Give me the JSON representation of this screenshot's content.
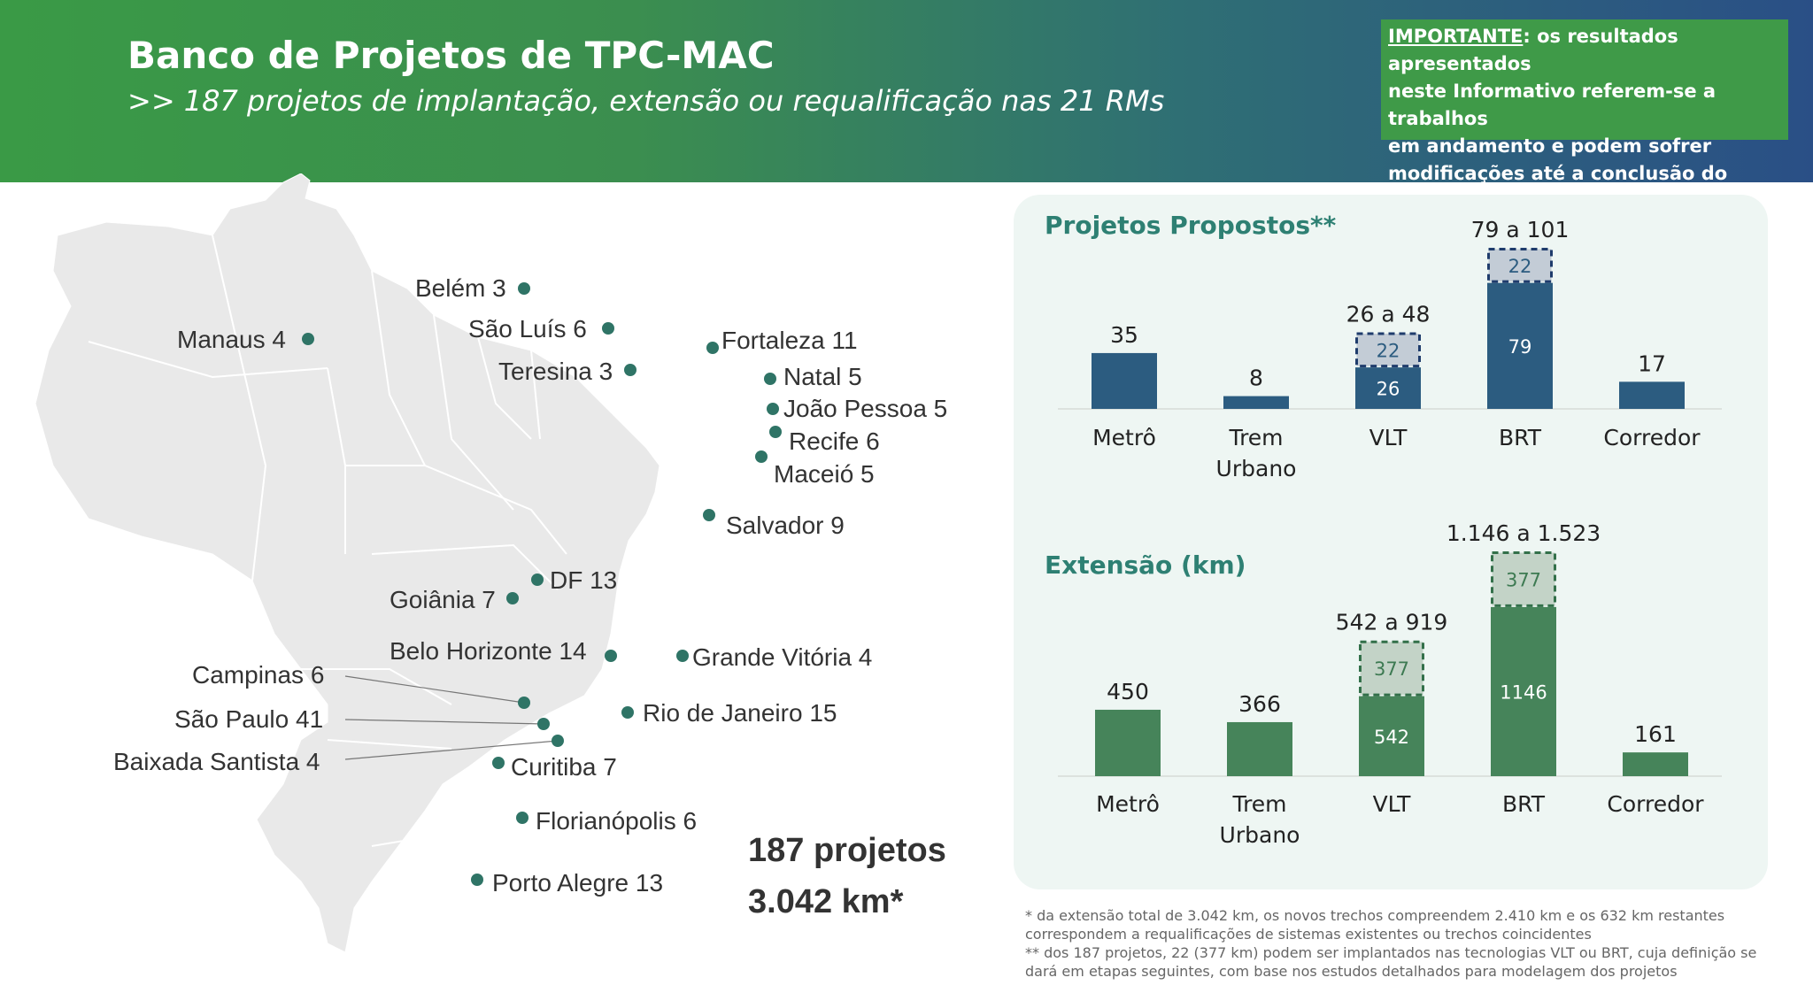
{
  "header": {
    "title": "Banco de Projetos de TPC-MAC",
    "subtitle": ">> 187 projetos de implantação, extensão ou requalificação nas 21 RMs",
    "notice_keyword": "IMPORTANTE",
    "notice_lines": [
      ": os resultados apresentados",
      "neste Informativo referem-se a trabalhos",
      "em andamento e podem sofrer",
      "modificações até a conclusão do ENMU"
    ]
  },
  "map": {
    "cities": [
      {
        "label": "Belém 3"
      },
      {
        "label": "Manaus 4"
      },
      {
        "label": "São Luís 6"
      },
      {
        "label": "Fortaleza 11"
      },
      {
        "label": "Teresina 3"
      },
      {
        "label": "Natal 5"
      },
      {
        "label": "João Pessoa 5"
      },
      {
        "label": "Recife 6"
      },
      {
        "label": "Maceió 5"
      },
      {
        "label": "Salvador 9"
      },
      {
        "label": "DF 13"
      },
      {
        "label": "Goiânia 7"
      },
      {
        "label": "Belo Horizonte 14"
      },
      {
        "label": "Grande Vitória 4"
      },
      {
        "label": "Campinas 6"
      },
      {
        "label": "São Paulo 41"
      },
      {
        "label": "Rio de Janeiro 15"
      },
      {
        "label": "Baixada Santista 4"
      },
      {
        "label": "Curitiba  7"
      },
      {
        "label": "Florianópolis 6"
      },
      {
        "label": "Porto Alegre 13"
      }
    ],
    "total_projects": "187 projetos",
    "total_km": "3.042 km*"
  },
  "colors": {
    "projects_bar": "#2c5c80",
    "projects_shared": "#c3ccd6",
    "projects_border": "#1f3c6c",
    "extension_bar": "#46845a",
    "extension_shared": "#c3d3c7",
    "extension_border": "#33704a",
    "projects_title": "#2e8073",
    "extension_title": "#2e8073",
    "panel": "#eef6f3",
    "dot": "#2f7466"
  },
  "chart_data": [
    {
      "type": "bar",
      "title": "Projetos Propostos**",
      "categories": [
        "Metrô",
        "Trem Urbano",
        "VLT",
        "BRT",
        "Corredor"
      ],
      "series": [
        {
          "values": [
            35,
            8,
            26,
            79,
            17
          ]
        },
        {
          "values": [
            0,
            0,
            22,
            22,
            0
          ]
        }
      ],
      "data_labels": [
        [
          "35",
          "8",
          "26",
          "79",
          "17"
        ],
        [
          "",
          "",
          "22",
          "22",
          ""
        ]
      ],
      "totals": [
        "35",
        "8",
        "26 a 48",
        "79 a 101",
        "17"
      ],
      "ylim": [
        0,
        101
      ]
    },
    {
      "type": "bar",
      "title": "Extensão (km)",
      "categories": [
        "Metrô",
        "Trem Urbano",
        "VLT",
        "BRT",
        "Corredor"
      ],
      "series": [
        {
          "values": [
            450,
            366,
            542,
            1146,
            161
          ]
        },
        {
          "values": [
            0,
            0,
            377,
            377,
            0
          ]
        }
      ],
      "data_labels": [
        [
          "450",
          "366",
          "542",
          "1146",
          "161"
        ],
        [
          "",
          "",
          "377",
          "377",
          ""
        ]
      ],
      "totals": [
        "450",
        "366",
        "542 a 919",
        "1.146 a 1.523",
        "161"
      ],
      "ylim": [
        0,
        1523
      ]
    }
  ],
  "footnotes": [
    "* da extensão total de 3.042 km, os novos trechos compreendem 2.410 km e os 632 km restantes",
    "correspondem a requalificações de sistemas existentes ou trechos coincidentes",
    "** dos 187 projetos, 22 (377 km) podem ser implantados nas tecnologias VLT ou BRT, cuja definição se",
    "dará em etapas seguintes, com base nos estudos detalhados para modelagem dos projetos"
  ]
}
